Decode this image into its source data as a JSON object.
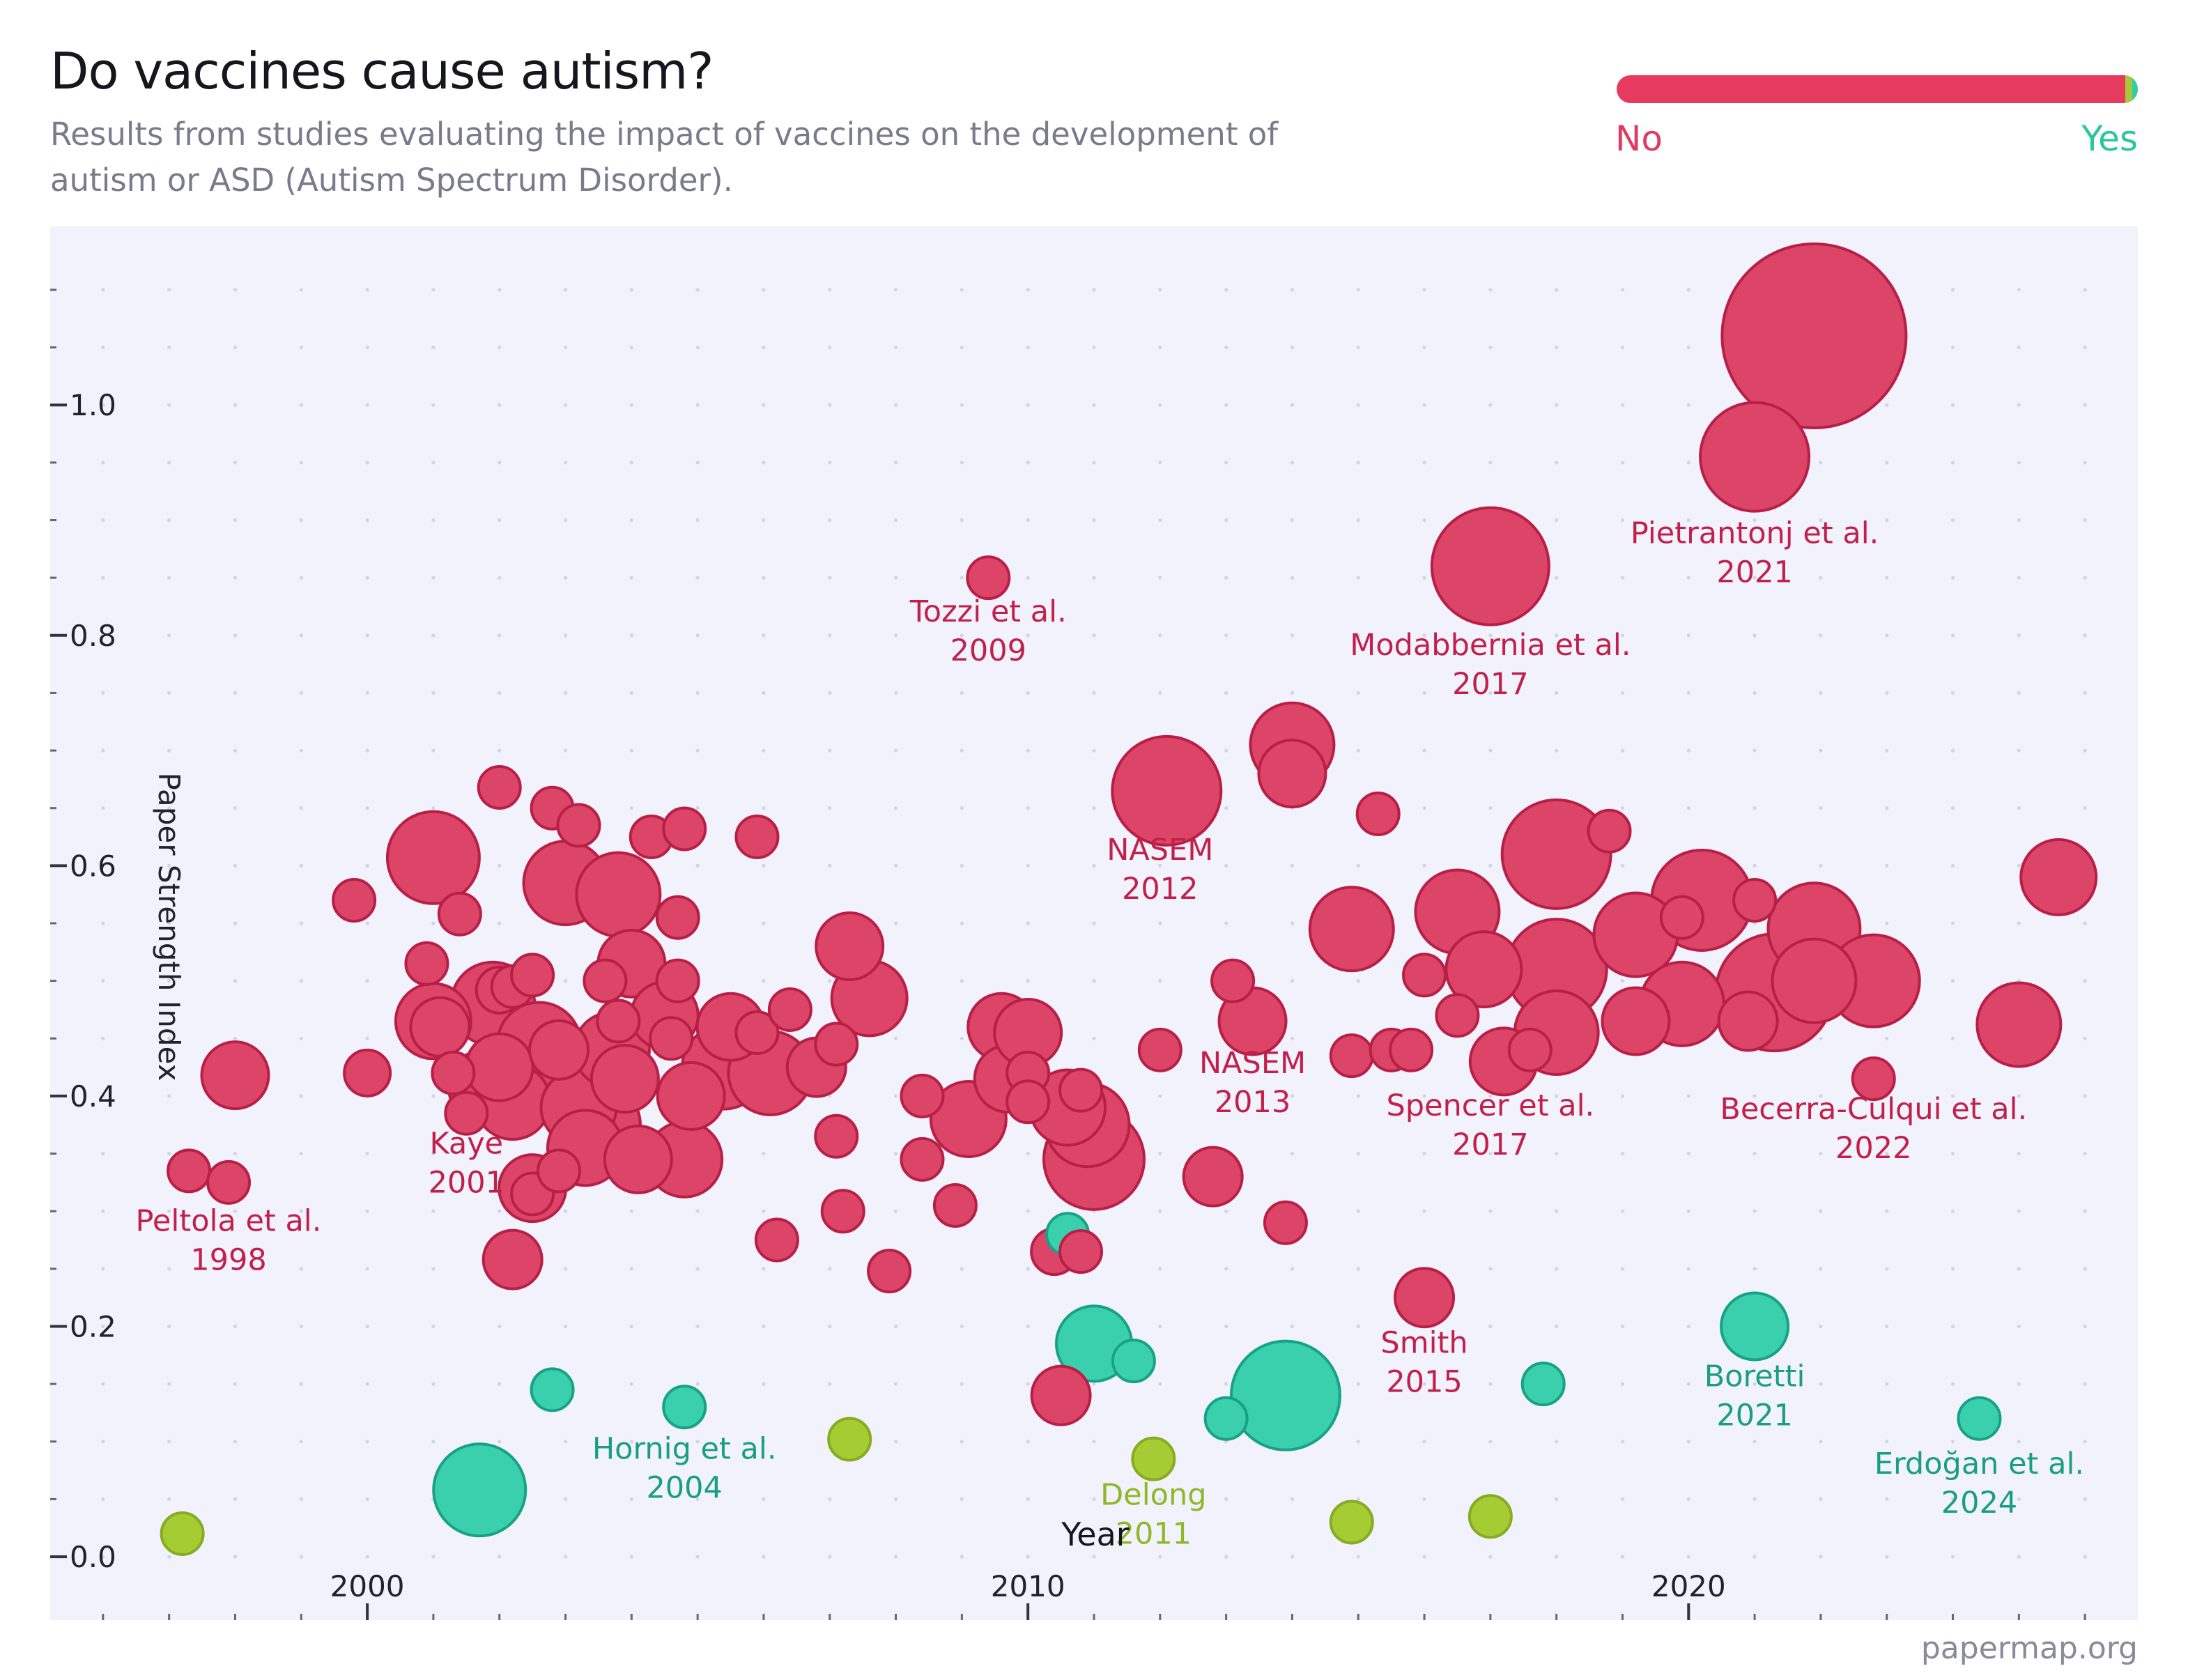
{
  "header": {
    "title": "Do vaccines cause autism?",
    "subtitle": "Results from studies evaluating the impact of vaccines on the development of autism or ASD (Autism Spectrum Disorder)."
  },
  "legend": {
    "no_label": "No",
    "yes_label": "Yes",
    "no_color": "#e03a60",
    "mixed_color": "#a7c83a",
    "yes_color": "#2fd0a6"
  },
  "footer": {
    "credit": "papermap.org"
  },
  "colors": {
    "no_fill": "#dc4468",
    "no_stroke": "#b81f45",
    "no_text": "#c1204a",
    "yes_fill": "#3ad0ae",
    "yes_stroke": "#18a285",
    "yes_text": "#199e82",
    "mixed_fill": "#a6cc34",
    "mixed_stroke": "#87ab22",
    "mixed_text": "#8fb828",
    "plot_bg": "#f2f2fc"
  },
  "chart_data": {
    "type": "scatter",
    "xlabel": "Year",
    "ylabel": "Paper Strength Index",
    "xlim": [
      1995.2,
      2026.8
    ],
    "ylim": [
      -0.055,
      1.155
    ],
    "x_ticks": [
      2000,
      2010,
      2020
    ],
    "y_ticks": [
      0.0,
      0.2,
      0.4,
      0.6,
      0.8,
      1.0
    ],
    "y_tick_labels": [
      "0.0",
      "0.2",
      "0.4",
      "0.6",
      "0.8",
      "1.0"
    ],
    "x_tick_labels": [
      "2000",
      "2010",
      "2020"
    ],
    "grid": "dotted",
    "legend_placement": "top-right",
    "points": [
      {
        "x": 1997.2,
        "y": 0.02,
        "size": 10,
        "result": "mixed"
      },
      {
        "x": 1997.3,
        "y": 0.335,
        "size": 10,
        "result": "no"
      },
      {
        "x": 1997.9,
        "y": 0.325,
        "size": 10,
        "result": "no"
      },
      {
        "x": 1998.0,
        "y": 0.418,
        "size": 16,
        "result": "no"
      },
      {
        "x": 1999.8,
        "y": 0.57,
        "size": 10,
        "result": "no"
      },
      {
        "x": 2000.0,
        "y": 0.42,
        "size": 11,
        "result": "no"
      },
      {
        "x": 2000.9,
        "y": 0.515,
        "size": 10,
        "result": "no"
      },
      {
        "x": 2001.0,
        "y": 0.607,
        "size": 22,
        "result": "no"
      },
      {
        "x": 2001.0,
        "y": 0.465,
        "size": 18,
        "result": "no"
      },
      {
        "x": 2001.1,
        "y": 0.46,
        "size": 14,
        "result": "no"
      },
      {
        "x": 2001.3,
        "y": 0.42,
        "size": 10,
        "result": "no"
      },
      {
        "x": 2001.4,
        "y": 0.558,
        "size": 10,
        "result": "no"
      },
      {
        "x": 2001.5,
        "y": 0.385,
        "size": 10,
        "result": "no"
      },
      {
        "x": 2001.7,
        "y": 0.058,
        "size": 22,
        "result": "yes"
      },
      {
        "x": 2001.8,
        "y": 0.408,
        "size": 18,
        "result": "no"
      },
      {
        "x": 2001.9,
        "y": 0.48,
        "size": 20,
        "result": "no"
      },
      {
        "x": 2002.0,
        "y": 0.668,
        "size": 10,
        "result": "no"
      },
      {
        "x": 2002.0,
        "y": 0.492,
        "size": 11,
        "result": "no"
      },
      {
        "x": 2002.0,
        "y": 0.425,
        "size": 16,
        "result": "no"
      },
      {
        "x": 2002.2,
        "y": 0.495,
        "size": 10,
        "result": "no"
      },
      {
        "x": 2002.2,
        "y": 0.258,
        "size": 14,
        "result": "no"
      },
      {
        "x": 2002.2,
        "y": 0.395,
        "size": 18,
        "result": "no"
      },
      {
        "x": 2002.5,
        "y": 0.505,
        "size": 10,
        "result": "no"
      },
      {
        "x": 2002.5,
        "y": 0.32,
        "size": 16,
        "result": "no"
      },
      {
        "x": 2002.5,
        "y": 0.315,
        "size": 10,
        "result": "no"
      },
      {
        "x": 2002.6,
        "y": 0.445,
        "size": 20,
        "result": "no"
      },
      {
        "x": 2002.8,
        "y": 0.145,
        "size": 10,
        "result": "yes"
      },
      {
        "x": 2002.8,
        "y": 0.65,
        "size": 10,
        "result": "no"
      },
      {
        "x": 2002.9,
        "y": 0.44,
        "size": 14,
        "result": "no"
      },
      {
        "x": 2002.9,
        "y": 0.335,
        "size": 10,
        "result": "no"
      },
      {
        "x": 2003.0,
        "y": 0.585,
        "size": 20,
        "result": "no"
      },
      {
        "x": 2003.2,
        "y": 0.39,
        "size": 18,
        "result": "no"
      },
      {
        "x": 2003.2,
        "y": 0.635,
        "size": 10,
        "result": "no"
      },
      {
        "x": 2003.3,
        "y": 0.355,
        "size": 18,
        "result": "no"
      },
      {
        "x": 2003.5,
        "y": 0.375,
        "size": 20,
        "result": "no"
      },
      {
        "x": 2003.6,
        "y": 0.5,
        "size": 10,
        "result": "no"
      },
      {
        "x": 2003.7,
        "y": 0.44,
        "size": 18,
        "result": "no"
      },
      {
        "x": 2003.8,
        "y": 0.465,
        "size": 10,
        "result": "no"
      },
      {
        "x": 2003.8,
        "y": 0.575,
        "size": 20,
        "result": "no"
      },
      {
        "x": 2003.9,
        "y": 0.415,
        "size": 16,
        "result": "no"
      },
      {
        "x": 2004.0,
        "y": 0.515,
        "size": 16,
        "result": "no"
      },
      {
        "x": 2004.1,
        "y": 0.345,
        "size": 16,
        "result": "no"
      },
      {
        "x": 2004.3,
        "y": 0.625,
        "size": 10,
        "result": "no"
      },
      {
        "x": 2004.5,
        "y": 0.47,
        "size": 16,
        "result": "no"
      },
      {
        "x": 2004.6,
        "y": 0.45,
        "size": 10,
        "result": "no"
      },
      {
        "x": 2004.7,
        "y": 0.5,
        "size": 10,
        "result": "no"
      },
      {
        "x": 2004.7,
        "y": 0.555,
        "size": 10,
        "result": "no"
      },
      {
        "x": 2004.8,
        "y": 0.632,
        "size": 10,
        "result": "no"
      },
      {
        "x": 2004.8,
        "y": 0.13,
        "size": 10,
        "result": "yes"
      },
      {
        "x": 2004.8,
        "y": 0.345,
        "size": 18,
        "result": "no"
      },
      {
        "x": 2004.9,
        "y": 0.4,
        "size": 16,
        "result": "no"
      },
      {
        "x": 2005.4,
        "y": 0.425,
        "size": 20,
        "result": "no"
      },
      {
        "x": 2005.5,
        "y": 0.46,
        "size": 16,
        "result": "no"
      },
      {
        "x": 2005.9,
        "y": 0.625,
        "size": 10,
        "result": "no"
      },
      {
        "x": 2005.9,
        "y": 0.455,
        "size": 10,
        "result": "no"
      },
      {
        "x": 2006.1,
        "y": 0.42,
        "size": 20,
        "result": "no"
      },
      {
        "x": 2006.2,
        "y": 0.275,
        "size": 10,
        "result": "no"
      },
      {
        "x": 2006.4,
        "y": 0.475,
        "size": 10,
        "result": "no"
      },
      {
        "x": 2006.8,
        "y": 0.425,
        "size": 14,
        "result": "no"
      },
      {
        "x": 2007.1,
        "y": 0.445,
        "size": 10,
        "result": "no"
      },
      {
        "x": 2007.1,
        "y": 0.365,
        "size": 10,
        "result": "no"
      },
      {
        "x": 2007.2,
        "y": 0.3,
        "size": 10,
        "result": "no"
      },
      {
        "x": 2007.3,
        "y": 0.102,
        "size": 10,
        "result": "mixed"
      },
      {
        "x": 2007.3,
        "y": 0.53,
        "size": 16,
        "result": "no"
      },
      {
        "x": 2007.6,
        "y": 0.485,
        "size": 18,
        "result": "no"
      },
      {
        "x": 2007.9,
        "y": 0.248,
        "size": 10,
        "result": "no"
      },
      {
        "x": 2008.4,
        "y": 0.4,
        "size": 10,
        "result": "no"
      },
      {
        "x": 2008.4,
        "y": 0.345,
        "size": 10,
        "result": "no"
      },
      {
        "x": 2008.9,
        "y": 0.305,
        "size": 10,
        "result": "no"
      },
      {
        "x": 2009.1,
        "y": 0.38,
        "size": 18,
        "result": "no"
      },
      {
        "x": 2009.4,
        "y": 0.85,
        "size": 10,
        "result": "no"
      },
      {
        "x": 2009.6,
        "y": 0.46,
        "size": 16,
        "result": "no"
      },
      {
        "x": 2009.7,
        "y": 0.415,
        "size": 16,
        "result": "no"
      },
      {
        "x": 2010.0,
        "y": 0.455,
        "size": 16,
        "result": "no"
      },
      {
        "x": 2010.0,
        "y": 0.42,
        "size": 10,
        "result": "no"
      },
      {
        "x": 2010.0,
        "y": 0.395,
        "size": 10,
        "result": "no"
      },
      {
        "x": 2010.4,
        "y": 0.265,
        "size": 11,
        "result": "no"
      },
      {
        "x": 2010.5,
        "y": 0.14,
        "size": 14,
        "result": "no"
      },
      {
        "x": 2010.6,
        "y": 0.28,
        "size": 10,
        "result": "yes"
      },
      {
        "x": 2010.6,
        "y": 0.39,
        "size": 18,
        "result": "no"
      },
      {
        "x": 2010.8,
        "y": 0.265,
        "size": 10,
        "result": "no"
      },
      {
        "x": 2010.8,
        "y": 0.405,
        "size": 10,
        "result": "no"
      },
      {
        "x": 2010.9,
        "y": 0.375,
        "size": 20,
        "result": "no"
      },
      {
        "x": 2011.0,
        "y": 0.185,
        "size": 18,
        "result": "yes"
      },
      {
        "x": 2011.0,
        "y": 0.345,
        "size": 24,
        "result": "no"
      },
      {
        "x": 2011.6,
        "y": 0.17,
        "size": 10,
        "result": "yes"
      },
      {
        "x": 2011.9,
        "y": 0.085,
        "size": 10,
        "result": "mixed"
      },
      {
        "x": 2012.0,
        "y": 0.44,
        "size": 10,
        "result": "no"
      },
      {
        "x": 2012.1,
        "y": 0.665,
        "size": 26,
        "result": "no"
      },
      {
        "x": 2012.8,
        "y": 0.33,
        "size": 14,
        "result": "no"
      },
      {
        "x": 2013.0,
        "y": 0.12,
        "size": 10,
        "result": "yes"
      },
      {
        "x": 2013.1,
        "y": 0.5,
        "size": 10,
        "result": "no"
      },
      {
        "x": 2013.4,
        "y": 0.465,
        "size": 16,
        "result": "no"
      },
      {
        "x": 2013.9,
        "y": 0.29,
        "size": 10,
        "result": "no"
      },
      {
        "x": 2013.9,
        "y": 0.14,
        "size": 26,
        "result": "yes"
      },
      {
        "x": 2014.0,
        "y": 0.705,
        "size": 20,
        "result": "no"
      },
      {
        "x": 2014.0,
        "y": 0.68,
        "size": 16,
        "result": "no"
      },
      {
        "x": 2014.9,
        "y": 0.03,
        "size": 10,
        "result": "mixed"
      },
      {
        "x": 2014.9,
        "y": 0.435,
        "size": 10,
        "result": "no"
      },
      {
        "x": 2014.9,
        "y": 0.545,
        "size": 20,
        "result": "no"
      },
      {
        "x": 2015.3,
        "y": 0.645,
        "size": 10,
        "result": "no"
      },
      {
        "x": 2015.5,
        "y": 0.44,
        "size": 10,
        "result": "no"
      },
      {
        "x": 2015.8,
        "y": 0.44,
        "size": 10,
        "result": "no"
      },
      {
        "x": 2016.0,
        "y": 0.505,
        "size": 10,
        "result": "no"
      },
      {
        "x": 2016.0,
        "y": 0.225,
        "size": 14,
        "result": "no"
      },
      {
        "x": 2016.5,
        "y": 0.56,
        "size": 20,
        "result": "no"
      },
      {
        "x": 2016.5,
        "y": 0.47,
        "size": 10,
        "result": "no"
      },
      {
        "x": 2016.9,
        "y": 0.51,
        "size": 18,
        "result": "no"
      },
      {
        "x": 2017.0,
        "y": 0.86,
        "size": 28,
        "result": "no"
      },
      {
        "x": 2017.0,
        "y": 0.035,
        "size": 10,
        "result": "mixed"
      },
      {
        "x": 2017.2,
        "y": 0.43,
        "size": 16,
        "result": "no"
      },
      {
        "x": 2017.6,
        "y": 0.44,
        "size": 10,
        "result": "no"
      },
      {
        "x": 2017.8,
        "y": 0.15,
        "size": 10,
        "result": "yes"
      },
      {
        "x": 2018.0,
        "y": 0.61,
        "size": 26,
        "result": "no"
      },
      {
        "x": 2018.0,
        "y": 0.51,
        "size": 24,
        "result": "no"
      },
      {
        "x": 2018.0,
        "y": 0.455,
        "size": 20,
        "result": "no"
      },
      {
        "x": 2018.8,
        "y": 0.63,
        "size": 10,
        "result": "no"
      },
      {
        "x": 2019.2,
        "y": 0.465,
        "size": 16,
        "result": "no"
      },
      {
        "x": 2019.2,
        "y": 0.54,
        "size": 20,
        "result": "no"
      },
      {
        "x": 2019.9,
        "y": 0.555,
        "size": 10,
        "result": "no"
      },
      {
        "x": 2019.9,
        "y": 0.48,
        "size": 20,
        "result": "no"
      },
      {
        "x": 2020.2,
        "y": 0.57,
        "size": 24,
        "result": "no"
      },
      {
        "x": 2020.9,
        "y": 0.465,
        "size": 14,
        "result": "no"
      },
      {
        "x": 2021.0,
        "y": 0.955,
        "size": 26,
        "result": "no"
      },
      {
        "x": 2021.0,
        "y": 0.57,
        "size": 10,
        "result": "no"
      },
      {
        "x": 2021.0,
        "y": 0.2,
        "size": 16,
        "result": "yes"
      },
      {
        "x": 2021.3,
        "y": 0.49,
        "size": 28,
        "result": "no"
      },
      {
        "x": 2021.9,
        "y": 0.545,
        "size": 22,
        "result": "no"
      },
      {
        "x": 2021.9,
        "y": 0.5,
        "size": 20,
        "result": "no"
      },
      {
        "x": 2021.9,
        "y": 1.06,
        "size": 44,
        "result": "no"
      },
      {
        "x": 2022.8,
        "y": 0.5,
        "size": 22,
        "result": "no"
      },
      {
        "x": 2022.8,
        "y": 0.415,
        "size": 10,
        "result": "no"
      },
      {
        "x": 2024.4,
        "y": 0.12,
        "size": 10,
        "result": "yes"
      },
      {
        "x": 2025.0,
        "y": 0.462,
        "size": 20,
        "result": "no"
      },
      {
        "x": 2025.6,
        "y": 0.59,
        "size": 18,
        "result": "no"
      }
    ],
    "annotations": [
      {
        "x": 1997.9,
        "y": 0.283,
        "line1": "Peltola et al.",
        "line2": "1998",
        "result": "no"
      },
      {
        "x": 2001.5,
        "y": 0.35,
        "line1": "Kaye",
        "line2": "2001",
        "result": "no"
      },
      {
        "x": 2009.4,
        "y": 0.812,
        "line1": "Tozzi et al.",
        "line2": "2009",
        "result": "no"
      },
      {
        "x": 2012.0,
        "y": 0.605,
        "line1": "NASEM",
        "line2": "2012",
        "result": "no"
      },
      {
        "x": 2013.4,
        "y": 0.42,
        "line1": "NASEM",
        "line2": "2013",
        "result": "no"
      },
      {
        "x": 2016.0,
        "y": 0.177,
        "line1": "Smith",
        "line2": "2015",
        "result": "no"
      },
      {
        "x": 2017.0,
        "y": 0.383,
        "line1": "Spencer et al.",
        "line2": "2017",
        "result": "no"
      },
      {
        "x": 2017.0,
        "y": 0.783,
        "line1": "Modabbernia et al.",
        "line2": "2017",
        "result": "no"
      },
      {
        "x": 2021.0,
        "y": 0.88,
        "line1": "Pietrantonj et al.",
        "line2": "2021",
        "result": "no"
      },
      {
        "x": 2022.8,
        "y": 0.38,
        "line1": "Becerra-Culqui et al.",
        "line2": "2022",
        "result": "no"
      },
      {
        "x": 2004.8,
        "y": 0.085,
        "line1": "Hornig et al.",
        "line2": "2004",
        "result": "yes"
      },
      {
        "x": 2021.0,
        "y": 0.148,
        "line1": "Boretti",
        "line2": "2021",
        "result": "yes"
      },
      {
        "x": 2024.4,
        "y": 0.072,
        "line1": "Erdoğan et al.",
        "line2": "2024",
        "result": "yes"
      },
      {
        "x": 2011.9,
        "y": 0.045,
        "line1": "Delong",
        "line2": "2011",
        "result": "mixed"
      }
    ]
  }
}
